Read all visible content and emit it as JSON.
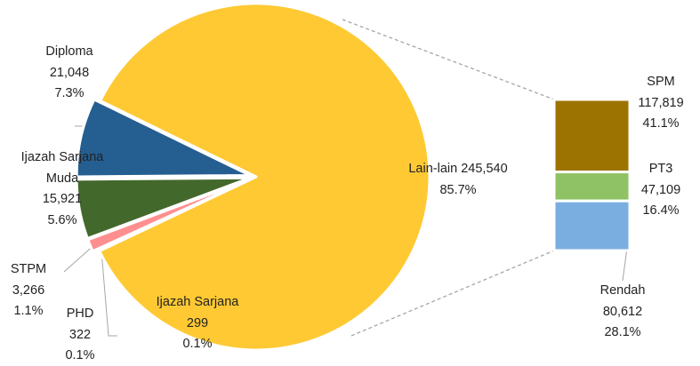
{
  "chart_data": {
    "type": "bar-of-pie",
    "pie": {
      "categories": [
        "Lain-lain",
        "Ijazah Sarjana",
        "PHD",
        "STPM",
        "Ijazah Sarjana Muda",
        "Diploma"
      ],
      "values": [
        245540,
        299,
        322,
        3266,
        15921,
        21048
      ],
      "value_labels": [
        "245,540",
        "299",
        "322",
        "3,266",
        "15,921",
        "21,048"
      ],
      "percents": [
        85.7,
        0.1,
        0.1,
        1.1,
        5.6,
        7.3
      ],
      "percent_labels": [
        "85.7%",
        "0.1%",
        "0.1%",
        "1.1%",
        "5.6%",
        "7.3%"
      ],
      "colors": [
        "#fec933",
        "#c9a227",
        "#a5a5a5",
        "#ff8f8f",
        "#43682b",
        "#255e91"
      ]
    },
    "bar": {
      "categories": [
        "SPM",
        "PT3",
        "Rendah"
      ],
      "values": [
        117819,
        47109,
        80612
      ],
      "value_labels": [
        "117,819",
        "47,109",
        "80,612"
      ],
      "percents": [
        41.1,
        16.4,
        28.1
      ],
      "percent_labels": [
        "41.1%",
        "16.4%",
        "28.1%"
      ],
      "colors": [
        "#9c7300",
        "#8fc264",
        "#7aaee0"
      ]
    }
  }
}
